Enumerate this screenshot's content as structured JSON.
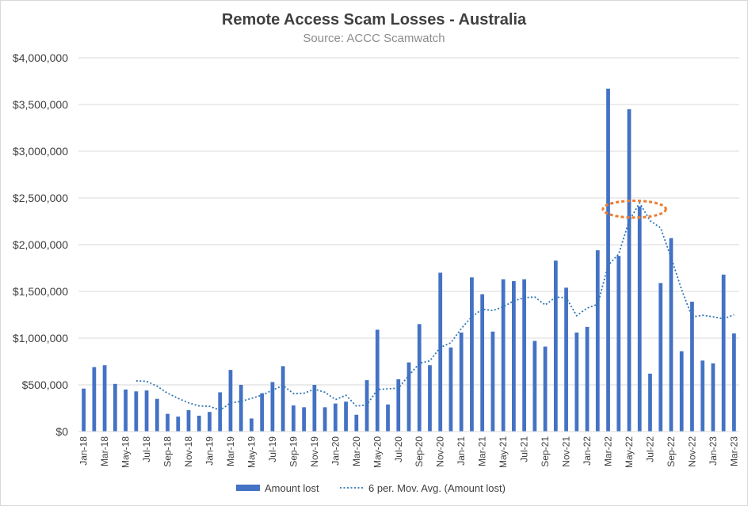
{
  "chart_data": {
    "type": "bar",
    "title": "Remote Access Scam Losses - Australia",
    "subtitle": "Source: ACCC Scamwatch",
    "xlabel": "",
    "ylabel": "",
    "ylim": [
      0,
      4000000
    ],
    "yticks": [
      0,
      500000,
      1000000,
      1500000,
      2000000,
      2500000,
      3000000,
      3500000,
      4000000
    ],
    "ytick_labels": [
      "$0",
      "$500,000",
      "$1,000,000",
      "$1,500,000",
      "$2,000,000",
      "$2,500,000",
      "$3,000,000",
      "$3,500,000",
      "$4,000,000"
    ],
    "grid": "horizontal",
    "legend_position": "bottom",
    "bar_color": "#4472c4",
    "line_color": "#2e75b6",
    "highlight_color": "#ed7d31",
    "categories": [
      "Jan-18",
      "Feb-18",
      "Mar-18",
      "Apr-18",
      "May-18",
      "Jun-18",
      "Jul-18",
      "Aug-18",
      "Sep-18",
      "Oct-18",
      "Nov-18",
      "Dec-18",
      "Jan-19",
      "Feb-19",
      "Mar-19",
      "Apr-19",
      "May-19",
      "Jun-19",
      "Jul-19",
      "Aug-19",
      "Sep-19",
      "Oct-19",
      "Nov-19",
      "Dec-19",
      "Jan-20",
      "Feb-20",
      "Mar-20",
      "Apr-20",
      "May-20",
      "Jun-20",
      "Jul-20",
      "Aug-20",
      "Sep-20",
      "Oct-20",
      "Nov-20",
      "Dec-20",
      "Jan-21",
      "Feb-21",
      "Mar-21",
      "Apr-21",
      "May-21",
      "Jun-21",
      "Jul-21",
      "Aug-21",
      "Sep-21",
      "Oct-21",
      "Nov-21",
      "Dec-21",
      "Jan-22",
      "Feb-22",
      "Mar-22",
      "Apr-22",
      "May-22",
      "Jun-22",
      "Jul-22",
      "Aug-22",
      "Sep-22",
      "Oct-22",
      "Nov-22",
      "Dec-22",
      "Jan-23",
      "Feb-23",
      "Mar-23"
    ],
    "tick_label_every": 2,
    "series": [
      {
        "name": "Amount lost",
        "type": "bar",
        "values": [
          460000,
          690000,
          710000,
          510000,
          450000,
          430000,
          440000,
          350000,
          190000,
          160000,
          230000,
          170000,
          210000,
          420000,
          660000,
          500000,
          140000,
          410000,
          530000,
          700000,
          280000,
          260000,
          500000,
          260000,
          300000,
          320000,
          180000,
          550000,
          1090000,
          290000,
          560000,
          740000,
          1150000,
          710000,
          1700000,
          900000,
          1060000,
          1650000,
          1470000,
          1070000,
          1630000,
          1610000,
          1630000,
          970000,
          910000,
          1830000,
          1540000,
          1060000,
          1120000,
          1940000,
          3670000,
          1880000,
          3450000,
          2410000,
          620000,
          1590000,
          2070000,
          860000,
          1390000,
          760000,
          730000,
          1680000,
          1050000
        ]
      },
      {
        "name": "6 per. Mov. Avg. (Amount lost)",
        "type": "line",
        "values": [
          null,
          null,
          null,
          null,
          null,
          542000,
          538000,
          486000,
          410000,
          355000,
          308000,
          275000,
          270000,
          230000,
          307000,
          323000,
          355000,
          390000,
          443000,
          493000,
          407000,
          410000,
          453000,
          420000,
          342000,
          388000,
          273000,
          285000,
          450000,
          457000,
          466000,
          600000,
          730000,
          758000,
          900000,
          950000,
          1103000,
          1228000,
          1310000,
          1295000,
          1335000,
          1398000,
          1432000,
          1440000,
          1355000,
          1438000,
          1433000,
          1240000,
          1322000,
          1362000,
          1780000,
          1900000,
          2255000,
          2447000,
          2257000,
          2180000,
          1860000,
          1520000,
          1226000,
          1245000,
          1228000,
          1208000,
          1250000
        ]
      }
    ],
    "annotations": [
      {
        "shape": "ellipse",
        "style": "dotted",
        "x_from": "Mar-22",
        "x_to": "Aug-22",
        "y_center": 2380000,
        "y_radius": 90000
      }
    ]
  }
}
